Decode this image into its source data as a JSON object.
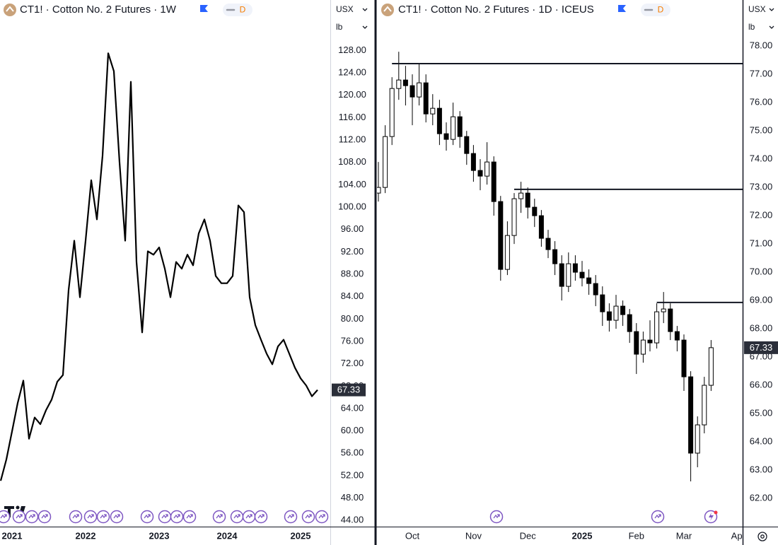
{
  "chart_data": [
    {
      "type": "line",
      "title": "CT1! · Cotton No. 2 Futures · 1W",
      "badge": "D",
      "currency": "USX",
      "unit": "lb",
      "color": "#000000",
      "categories": [
        null,
        null,
        "2021",
        null,
        null,
        null,
        null,
        null,
        null,
        null,
        null,
        null,
        null,
        null,
        null,
        "2022",
        null,
        null,
        null,
        null,
        null,
        null,
        null,
        null,
        null,
        null,
        null,
        null,
        "2023",
        null,
        null,
        null,
        null,
        null,
        null,
        null,
        null,
        null,
        null,
        null,
        "2024",
        null,
        null,
        null,
        null,
        null,
        null,
        null,
        null,
        null,
        null,
        null,
        null,
        "2025",
        null,
        null,
        null
      ],
      "values": [
        51.1,
        54.9,
        59.9,
        65.0,
        69.0,
        58.6,
        62.4,
        61.2,
        63.7,
        65.6,
        68.8,
        70.0,
        85.2,
        94.0,
        83.9,
        94.0,
        104.8,
        97.8,
        109.2,
        127.5,
        124.3,
        108.0,
        94.0,
        122.4,
        90.2,
        77.6,
        92.1,
        91.5,
        92.8,
        89.0,
        83.9,
        90.2,
        89.0,
        91.5,
        89.6,
        95.3,
        97.8,
        94.0,
        87.7,
        86.4,
        86.4,
        87.7,
        100.3,
        99.1,
        83.9,
        78.9,
        76.3,
        73.8,
        71.9,
        75.1,
        76.3,
        73.8,
        71.3,
        69.4,
        68.1,
        66.2,
        67.33
      ],
      "ylim": [
        42.9,
        130.7
      ],
      "yticks": [
        {
          "value": 44,
          "label": "44.00"
        },
        {
          "value": 48,
          "label": "48.00"
        },
        {
          "value": 52,
          "label": "52.00"
        },
        {
          "value": 56,
          "label": "56.00"
        },
        {
          "value": 60,
          "label": "60.00"
        },
        {
          "value": 64,
          "label": "64.00"
        },
        {
          "value": 68,
          "label": "68.00"
        },
        {
          "value": 72,
          "label": "72.00"
        },
        {
          "value": 76,
          "label": "76.00"
        },
        {
          "value": 80,
          "label": "80.00"
        },
        {
          "value": 84,
          "label": "84.00"
        },
        {
          "value": 88,
          "label": "88.00"
        },
        {
          "value": 92,
          "label": "92.00"
        },
        {
          "value": 96,
          "label": "96.00"
        },
        {
          "value": 100,
          "label": "100.00"
        },
        {
          "value": 104,
          "label": "104.00"
        },
        {
          "value": 108,
          "label": "108.00"
        },
        {
          "value": 112,
          "label": "112.00"
        },
        {
          "value": 116,
          "label": "116.00"
        },
        {
          "value": 120,
          "label": "120.00"
        },
        {
          "value": 124,
          "label": "124.00"
        },
        {
          "value": 128,
          "label": "128.00"
        }
      ]
    },
    {
      "type": "candlestick",
      "title": "CT1! · Cotton No. 2 Futures · 1D · ICEUS",
      "badge": "D",
      "currency": "USX",
      "unit": "lb",
      "color": "#000000",
      "categories": [
        null,
        null,
        null,
        null,
        null,
        "Oct",
        null,
        null,
        null,
        null,
        null,
        null,
        null,
        null,
        "Nov",
        null,
        null,
        null,
        null,
        null,
        null,
        null,
        "Dec",
        null,
        null,
        null,
        null,
        null,
        null,
        null,
        "2025",
        null,
        null,
        null,
        null,
        null,
        null,
        null,
        "Feb",
        null,
        null,
        null,
        null,
        null,
        null,
        "Mar",
        null,
        null,
        null,
        null,
        null,
        null,
        null,
        "Apr"
      ],
      "open": [
        72.8,
        73.0,
        74.8,
        76.5,
        76.8,
        76.6,
        76.2,
        76.7,
        75.6,
        75.8,
        74.9,
        74.7,
        75.5,
        74.8,
        74.2,
        73.6,
        73.4,
        73.9,
        72.5,
        70.1,
        71.3,
        72.6,
        72.8,
        72.3,
        72.0,
        71.2,
        70.8,
        70.3,
        69.5,
        70.3,
        70.0,
        69.8,
        69.6,
        69.2,
        68.6,
        68.3,
        68.8,
        68.5,
        67.9,
        67.1,
        67.6,
        67.5,
        68.6,
        68.7,
        67.9,
        67.6,
        66.3,
        63.6,
        64.6,
        66.0,
        null,
        null,
        null,
        null
      ],
      "high": [
        73.9,
        75.2,
        76.9,
        77.8,
        77.3,
        77.0,
        77.4,
        77.0,
        76.3,
        76.1,
        75.3,
        76.0,
        75.7,
        75.0,
        74.5,
        74.0,
        74.6,
        74.1,
        72.7,
        71.8,
        72.8,
        73.2,
        73.0,
        72.6,
        72.2,
        71.5,
        71.1,
        70.6,
        70.7,
        70.6,
        70.4,
        70.1,
        69.9,
        69.5,
        68.9,
        69.2,
        69.0,
        68.7,
        68.2,
        67.9,
        68.3,
        68.9,
        69.3,
        68.9,
        68.1,
        67.8,
        66.5,
        64.9,
        66.3,
        67.6,
        null,
        null,
        null,
        null
      ],
      "low": [
        72.5,
        72.8,
        74.5,
        76.1,
        75.9,
        75.2,
        75.9,
        75.3,
        75.2,
        74.5,
        74.3,
        74.5,
        74.4,
        73.8,
        73.2,
        72.9,
        73.1,
        72.0,
        69.7,
        69.9,
        71.0,
        72.1,
        71.9,
        71.6,
        70.9,
        70.5,
        69.9,
        69.0,
        69.3,
        69.7,
        69.5,
        69.2,
        68.8,
        68.1,
        67.9,
        68.0,
        68.1,
        67.5,
        66.4,
        66.8,
        67.2,
        67.3,
        68.2,
        67.6,
        67.2,
        65.8,
        62.6,
        63.1,
        64.3,
        65.8,
        null,
        null,
        null,
        null
      ],
      "close": [
        73.0,
        74.8,
        76.5,
        76.8,
        76.6,
        76.2,
        76.7,
        75.6,
        75.8,
        74.9,
        74.7,
        75.5,
        74.8,
        74.2,
        73.6,
        73.4,
        73.9,
        72.5,
        70.1,
        71.3,
        72.6,
        72.8,
        72.3,
        72.0,
        71.2,
        70.8,
        70.3,
        69.5,
        70.3,
        70.0,
        69.8,
        69.6,
        69.2,
        68.6,
        68.3,
        68.8,
        68.5,
        67.9,
        67.1,
        67.6,
        67.5,
        68.6,
        68.7,
        67.9,
        67.6,
        66.3,
        63.6,
        64.6,
        66.0,
        67.33,
        null,
        null,
        null,
        null
      ],
      "horizontal_lines": [
        77.38,
        72.93,
        68.93
      ],
      "ylim": [
        61,
        78.38
      ],
      "yticks": [
        {
          "value": 62,
          "label": "62.00"
        },
        {
          "value": 63,
          "label": "63.00"
        },
        {
          "value": 64,
          "label": "64.00"
        },
        {
          "value": 65,
          "label": "65.00"
        },
        {
          "value": 66,
          "label": "66.00"
        },
        {
          "value": 67,
          "label": "67.00"
        },
        {
          "value": 68,
          "label": "68.00"
        },
        {
          "value": 69,
          "label": "69.00"
        },
        {
          "value": 70,
          "label": "70.00"
        },
        {
          "value": 71,
          "label": "71.00"
        },
        {
          "value": 72,
          "label": "72.00"
        },
        {
          "value": 73,
          "label": "73.00"
        },
        {
          "value": 74,
          "label": "74.00"
        },
        {
          "value": 75,
          "label": "75.00"
        },
        {
          "value": 76,
          "label": "76.00"
        },
        {
          "value": 77,
          "label": "77.00"
        },
        {
          "value": 78,
          "label": "78.00"
        }
      ]
    }
  ]
}
